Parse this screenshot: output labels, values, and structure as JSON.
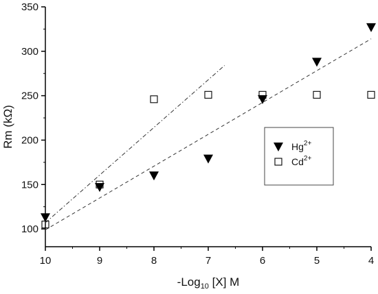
{
  "chart_data": {
    "type": "scatter",
    "x_axis": {
      "label_main": "-Log",
      "label_sub": "10",
      "label_rest": " [X] M",
      "ticks": [
        10,
        9,
        8,
        7,
        6,
        5,
        4
      ],
      "tick_labels": [
        "10",
        "9",
        "8",
        "7",
        "6",
        "5",
        "4"
      ],
      "range": [
        10,
        4
      ],
      "reversed": true
    },
    "y_axis": {
      "label": "Rm (kΩ)",
      "ticks": [
        100,
        150,
        200,
        250,
        300,
        350
      ],
      "tick_labels": [
        "100",
        "150",
        "200",
        "250",
        "300",
        "350"
      ],
      "range": [
        80,
        350
      ]
    },
    "series": [
      {
        "name": "Hg",
        "name_sup": "2+",
        "marker": "filled-down-triangle",
        "color": "#000000",
        "x": [
          10,
          9,
          8,
          7,
          6,
          5,
          4
        ],
        "y": [
          113,
          147,
          160,
          179,
          246,
          288,
          327
        ]
      },
      {
        "name": "Cd",
        "name_sup": "2+",
        "marker": "open-square",
        "color": "#000000",
        "x": [
          10,
          9,
          8,
          7,
          6,
          5,
          4
        ],
        "y": [
          105,
          150,
          246,
          251,
          251,
          251,
          251
        ]
      }
    ],
    "fit_lines": [
      {
        "style": "dash-dot",
        "x": [
          10,
          6.7
        ],
        "y": [
          107,
          284
        ]
      },
      {
        "style": "dashed",
        "x": [
          10,
          4
        ],
        "y": [
          99,
          314
        ]
      }
    ],
    "legend_placement": "center-right",
    "grid": false
  }
}
